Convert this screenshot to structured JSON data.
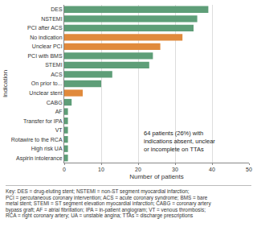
{
  "chart_data": {
    "type": "bar",
    "orientation": "horizontal",
    "x_label": "Number of patients",
    "y_label": "Indication",
    "categories": [
      "DES",
      "NSTEMI",
      "PCI after ACS",
      "No indication",
      "Unclear PCI",
      "PCI with BMS",
      "STEMI",
      "ACS",
      "On prior to...",
      "Unclear stent",
      "CABG",
      "AF",
      "Transfer for IPA",
      "VT",
      "Rotawire to the RCA",
      "High risk UA",
      "Aspirin intolerance"
    ],
    "values": [
      39,
      36,
      35,
      32,
      26,
      24,
      23,
      13,
      10,
      5,
      2,
      1,
      1,
      1,
      1,
      1,
      1
    ],
    "colors": [
      "#5e9e78",
      "#5e9e78",
      "#5e9e78",
      "#e08a3c",
      "#e08a3c",
      "#5e9e78",
      "#5e9e78",
      "#5e9e78",
      "#5e9e78",
      "#e08a3c",
      "#5e9e78",
      "#5e9e78",
      "#5e9e78",
      "#5e9e78",
      "#5e9e78",
      "#5e9e78",
      "#5e9e78"
    ],
    "xlim": [
      0,
      50
    ],
    "xticks": [
      0,
      10,
      20,
      30,
      40,
      50
    ],
    "grid": true,
    "annotations": [
      {
        "lines": [
          "64 patients (26%) with",
          "indications absent, unclear",
          "or incomplete on TTAs"
        ]
      }
    ],
    "footnote": [
      "Key: DES = drug-eluting stent; NSTEMI = non-ST segment myocardial infarction;",
      "PCI = percutaneous coronary intervention; ACS = acute coronary syndrome; BMS = bare",
      "metal stent; STEMI = ST segment elevation myocardial infarction; CABG = coronary artery",
      "bypass graft; AF = atrial fibrillation; IPA = in-patient angiogram; VT = venous thrombosis;",
      "RCA = right coronary artery; UA = unstable angina; TTAs = discharge prescriptions"
    ]
  }
}
